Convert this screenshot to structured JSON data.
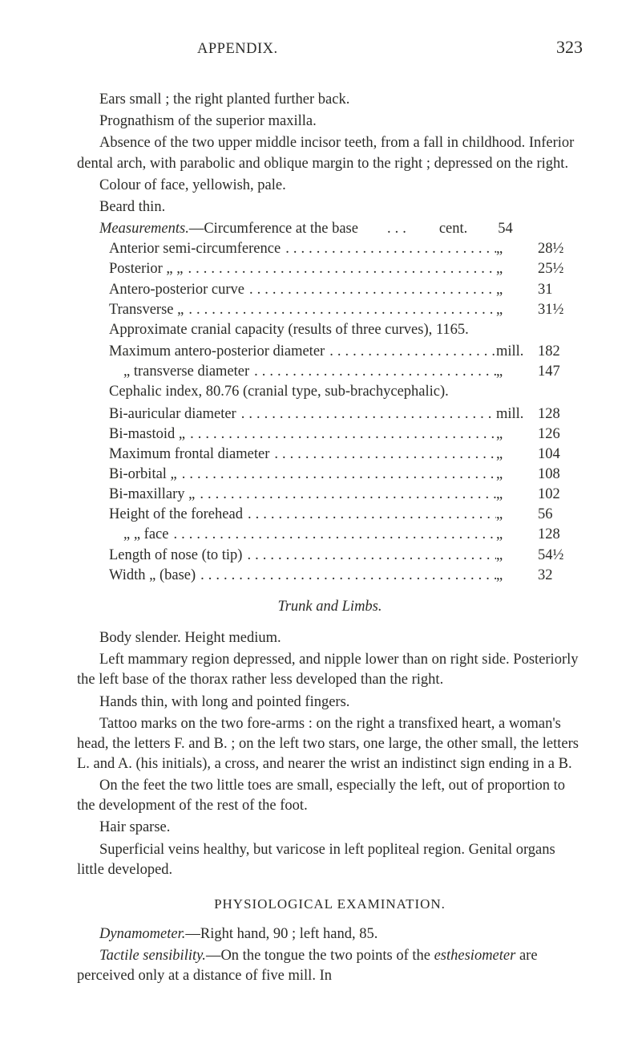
{
  "colors": {
    "background": "#ffffff",
    "text": "#2b2b28"
  },
  "typography": {
    "body_fontsize_pt": 14,
    "header_fontsize_pt": 14,
    "page_number_fontsize_pt": 17,
    "line_height": 1.36,
    "font_family": "Georgia, Times New Roman, serif"
  },
  "header": {
    "title": "APPENDIX.",
    "page_number": "323"
  },
  "intro": {
    "p1": "Ears small ; the right planted further back.",
    "p2": "Prognathism of the superior maxilla.",
    "p3": "Absence of the two upper middle incisor teeth, from a fall in childhood. Inferior dental arch, with parabolic and oblique margin to the right ; depressed on the right.",
    "p4": "Colour of face, yellowish, pale.",
    "p5": "Beard thin."
  },
  "measurements": {
    "label_prefix": "Measurements.",
    "first_line_rest": "—Circumference at the base",
    "unit_cent": "cent.",
    "unit_mill": "mill.",
    "ditto": "„",
    "rows_a": [
      {
        "label": "Anterior semi-circumference",
        "value": "28½"
      },
      {
        "label": "Posterior    „                    „",
        "value": "25½"
      },
      {
        "label": "Antero-posterior curve",
        "value": "31"
      },
      {
        "label": "Transverse               „",
        "value": "31½"
      }
    ],
    "first_value": "54",
    "approx_line": "Approximate cranial capacity (results of three curves), 1165.",
    "max_ap": {
      "label": "Maximum antero-posterior diameter",
      "value": "182"
    },
    "trans_diam": {
      "label": "„         transverse diameter",
      "value": "147"
    },
    "cephalic_line": "Cephalic index, 80.76 (cranial type, sub-brachycephalic).",
    "rows_b": [
      {
        "label": "Bi-auricular diameter",
        "unit": "mill.",
        "value": "128"
      },
      {
        "label": "Bi-mastoid          „",
        "unit": "„",
        "value": "126"
      },
      {
        "label": "Maximum frontal diameter",
        "unit": "„",
        "value": "104"
      },
      {
        "label": "Bi-orbital                   „",
        "unit": "„",
        "value": "108"
      },
      {
        "label": "Bi-maxillary              „",
        "unit": "„",
        "value": "102"
      },
      {
        "label": "Height of the forehead",
        "unit": "„",
        "value": "56"
      },
      {
        "label": "„          „     face",
        "unit": "„",
        "value": "128"
      },
      {
        "label": "Length of nose (to tip)",
        "unit": "„",
        "value": "54½"
      },
      {
        "label": "Width       „     (base)",
        "unit": "„",
        "value": "32"
      }
    ]
  },
  "trunk_section": {
    "title": "Trunk and Limbs.",
    "p1": "Body slender.   Height medium.",
    "p2": "Left mammary region depressed, and nipple lower than on right side. Posteriorly the left base of the thorax rather less developed than the right.",
    "p3": "Hands thin, with long and pointed fingers.",
    "p4": "Tattoo marks on the two fore-arms : on the right a transfixed heart, a woman's head, the letters F. and B. ; on the left two stars, one large, the other small, the letters L. and A. (his initials), a cross, and nearer the wrist an indistinct sign ending in a B.",
    "p5": "On the feet the two little toes are small, especially the left, out of proportion to the development of the rest of the foot.",
    "p6": "Hair sparse.",
    "p7": "Superficial veins healthy, but varicose in left popliteal region. Genital organs little developed."
  },
  "physio_section": {
    "title": "PHYSIOLOGICAL EXAMINATION.",
    "dyn_label": "Dynamometer.",
    "dyn_rest": "—Right hand, 90 ; left hand, 85.",
    "tact_label": "Tactile sensibility.",
    "tact_rest": "—On the tongue the two points of the ",
    "esth_label": "esthesiometer",
    "esth_rest": " are perceived only at a distance of five mill.  In"
  }
}
